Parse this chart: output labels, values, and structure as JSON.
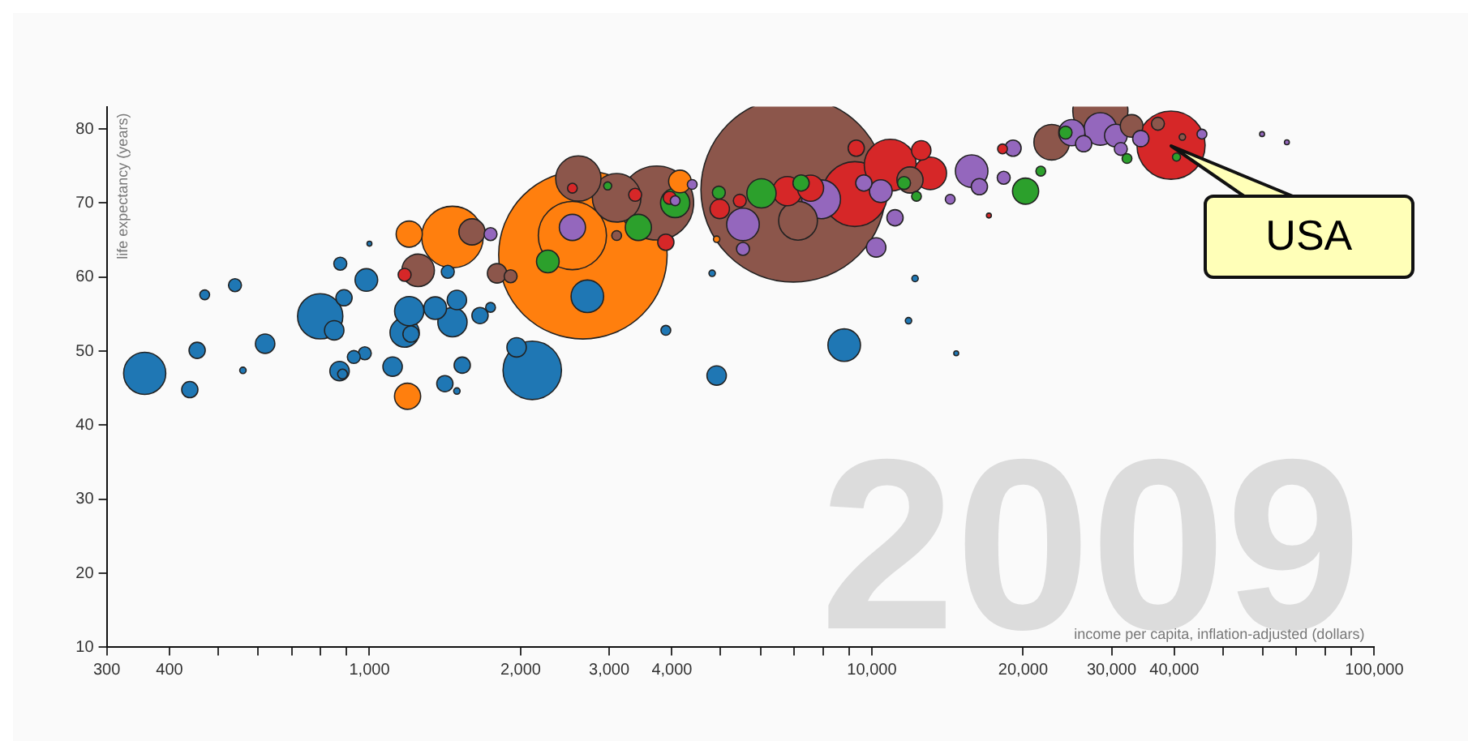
{
  "chart_data": {
    "type": "bubble",
    "xlabel": "income per capita, inflation-adjusted (dollars)",
    "ylabel": "life expectancy (years)",
    "log": "x",
    "grid": false,
    "legend": false,
    "marker": "circle",
    "xlim": [
      300,
      100000
    ],
    "ylim": [
      10,
      83
    ],
    "xticks": [
      300,
      400,
      {
        "value": 500,
        "label": null
      },
      {
        "value": 600,
        "label": null
      },
      {
        "value": 700,
        "label": null
      },
      {
        "value": 800,
        "label": null
      },
      {
        "value": 900,
        "label": null
      },
      {
        "value": 1000,
        "label": "1,000"
      },
      {
        "value": 2000,
        "label": "2,000"
      },
      {
        "value": 3000,
        "label": "3,000"
      },
      {
        "value": 4000,
        "label": "4,000"
      },
      {
        "value": 5000,
        "label": null
      },
      {
        "value": 6000,
        "label": null
      },
      {
        "value": 7000,
        "label": null
      },
      {
        "value": 8000,
        "label": null
      },
      {
        "value": 9000,
        "label": null
      },
      {
        "value": 10000,
        "label": "10,000"
      },
      {
        "value": 20000,
        "label": "20,000"
      },
      {
        "value": 30000,
        "label": "30,000"
      },
      {
        "value": 40000,
        "label": "40,000"
      },
      {
        "value": 50000,
        "label": null
      },
      {
        "value": 60000,
        "label": null
      },
      {
        "value": 70000,
        "label": null
      },
      {
        "value": 80000,
        "label": null
      },
      {
        "value": 90000,
        "label": null
      },
      {
        "value": 100000,
        "label": "100,000"
      }
    ],
    "yticks": [
      10,
      20,
      30,
      40,
      50,
      60,
      70,
      80
    ],
    "series": [
      {
        "color": "#1f77b4",
        "x": [
          357,
          439,
          454,
          470,
          540,
          560,
          620,
          798,
          851,
          890,
          875,
          986,
          872,
          884,
          931,
          979,
          1112,
          1200,
          1175,
          1210,
          1432,
          1352,
          1493,
          1463,
          1530,
          1413,
          1493,
          1660,
          1742,
          1963,
          2109,
          1000,
          2715,
          4810,
          12190,
          11830,
          8810,
          4910,
          14720,
          3890
        ],
        "values": [
          47.0,
          44.8,
          50.1,
          57.6,
          58.9,
          47.4,
          51.0,
          54.7,
          52.8,
          57.2,
          61.8,
          59.6,
          47.3,
          46.9,
          49.2,
          49.7,
          47.9,
          55.4,
          52.5,
          52.3,
          60.7,
          55.8,
          56.9,
          53.9,
          48.1,
          45.6,
          44.6,
          54.8,
          55.9,
          50.5,
          47.4,
          64.5,
          57.4,
          60.5,
          59.8,
          54.1,
          50.8,
          46.7,
          49.7,
          52.8
        ],
        "sizes": [
          0.052,
          0.0077,
          0.0077,
          0.0028,
          0.0049,
          0.0012,
          0.011,
          0.06,
          0.011,
          0.0077,
          0.0049,
          0.015,
          0.011,
          0.0028,
          0.0049,
          0.0049,
          0.011,
          0.025,
          0.025,
          0.0077,
          0.0049,
          0.015,
          0.011,
          0.025,
          0.0077,
          0.0077,
          0.0012,
          0.0077,
          0.0028,
          0.011,
          0.1,
          0.0007,
          0.031,
          0.0012,
          0.0012,
          0.0012,
          0.031,
          0.011,
          0.0007,
          0.0028
        ]
      },
      {
        "color": "#ff7f0e",
        "x": [
          2660,
          2535,
          1463,
          1200,
          1191,
          4150,
          4910
        ],
        "values": [
          63.0,
          65.6,
          65.4,
          65.8,
          43.9,
          72.9,
          65.1
        ],
        "sizes": [
          0.83,
          0.136,
          0.111,
          0.02,
          0.02,
          0.015,
          0.0012
        ]
      },
      {
        "color": "#8c564b",
        "x": [
          6980,
          2605,
          3105,
          3730,
          1600,
          1250,
          1795,
          1910,
          3105,
          7130,
          11910,
          28500,
          22800,
          32890,
          37100,
          41500
        ],
        "values": [
          71.8,
          73.3,
          70.7,
          70.0,
          66.1,
          60.9,
          60.5,
          60.1,
          65.6,
          67.6,
          73.1,
          82.4,
          78.2,
          80.4,
          80.7,
          78.9
        ],
        "sizes": [
          1,
          0.06,
          0.069,
          0.16,
          0.02,
          0.031,
          0.011,
          0.0049,
          0.0028,
          0.044,
          0.02,
          0.089,
          0.037,
          0.015,
          0.0049,
          0.0012
        ]
      },
      {
        "color": "#2ca02c",
        "x": [
          2265,
          3430,
          4060,
          2980,
          6030,
          4960,
          7230,
          11590,
          12270,
          20230,
          21690,
          24300,
          32200,
          40400
        ],
        "values": [
          62.1,
          66.7,
          70.0,
          72.3,
          71.3,
          71.4,
          72.7,
          72.7,
          70.9,
          71.6,
          74.3,
          79.5,
          76.0,
          76.2
        ],
        "sizes": [
          0.015,
          0.02,
          0.025,
          0.0019,
          0.025,
          0.0049,
          0.0077,
          0.0049,
          0.0028,
          0.02,
          0.0028,
          0.0049,
          0.0028,
          0.0019
        ]
      },
      {
        "color": "#d62728",
        "x": [
          1175,
          2535,
          3380,
          3890,
          3960,
          4980,
          5460,
          6790,
          7550,
          9250,
          10880,
          12540,
          13070,
          9310,
          18200,
          17100,
          39400
        ],
        "values": [
          60.3,
          72.0,
          71.1,
          64.7,
          70.7,
          69.2,
          70.3,
          71.6,
          72.0,
          71.2,
          75.1,
          77.1,
          74.0,
          77.4,
          77.3,
          68.3,
          77.8
        ],
        "sizes": [
          0.0049,
          0.0028,
          0.0049,
          0.0077,
          0.0049,
          0.011,
          0.0049,
          0.025,
          0.02,
          0.123,
          0.079,
          0.011,
          0.031,
          0.0077,
          0.0028,
          0.0007,
          0.136
        ]
      },
      {
        "color": "#9467bd",
        "x": [
          2535,
          1742,
          4390,
          4060,
          5540,
          5540,
          7925,
          9640,
          10420,
          11120,
          10200,
          15800,
          16370,
          18300,
          14320,
          19100,
          28500,
          25000,
          30600,
          26400,
          34300,
          45400,
          31300,
          59800,
          67000
        ],
        "values": [
          66.7,
          65.8,
          72.5,
          70.3,
          67.1,
          63.8,
          70.5,
          72.7,
          71.6,
          68.0,
          64.0,
          74.3,
          72.2,
          73.4,
          70.5,
          77.4,
          80.0,
          79.5,
          79.1,
          78.0,
          78.7,
          79.3,
          77.3,
          79.3,
          78.2
        ],
        "sizes": [
          0.02,
          0.0049,
          0.0028,
          0.0028,
          0.031,
          0.0049,
          0.044,
          0.0077,
          0.015,
          0.0077,
          0.011,
          0.031,
          0.0077,
          0.0049,
          0.0028,
          0.0077,
          0.031,
          0.02,
          0.015,
          0.0077,
          0.0077,
          0.0028,
          0.0049,
          0.0007,
          0.0007
        ]
      }
    ],
    "annotations": [
      "2009",
      {
        "text": "USA",
        "x": 39400,
        "y": 77.8
      }
    ]
  }
}
